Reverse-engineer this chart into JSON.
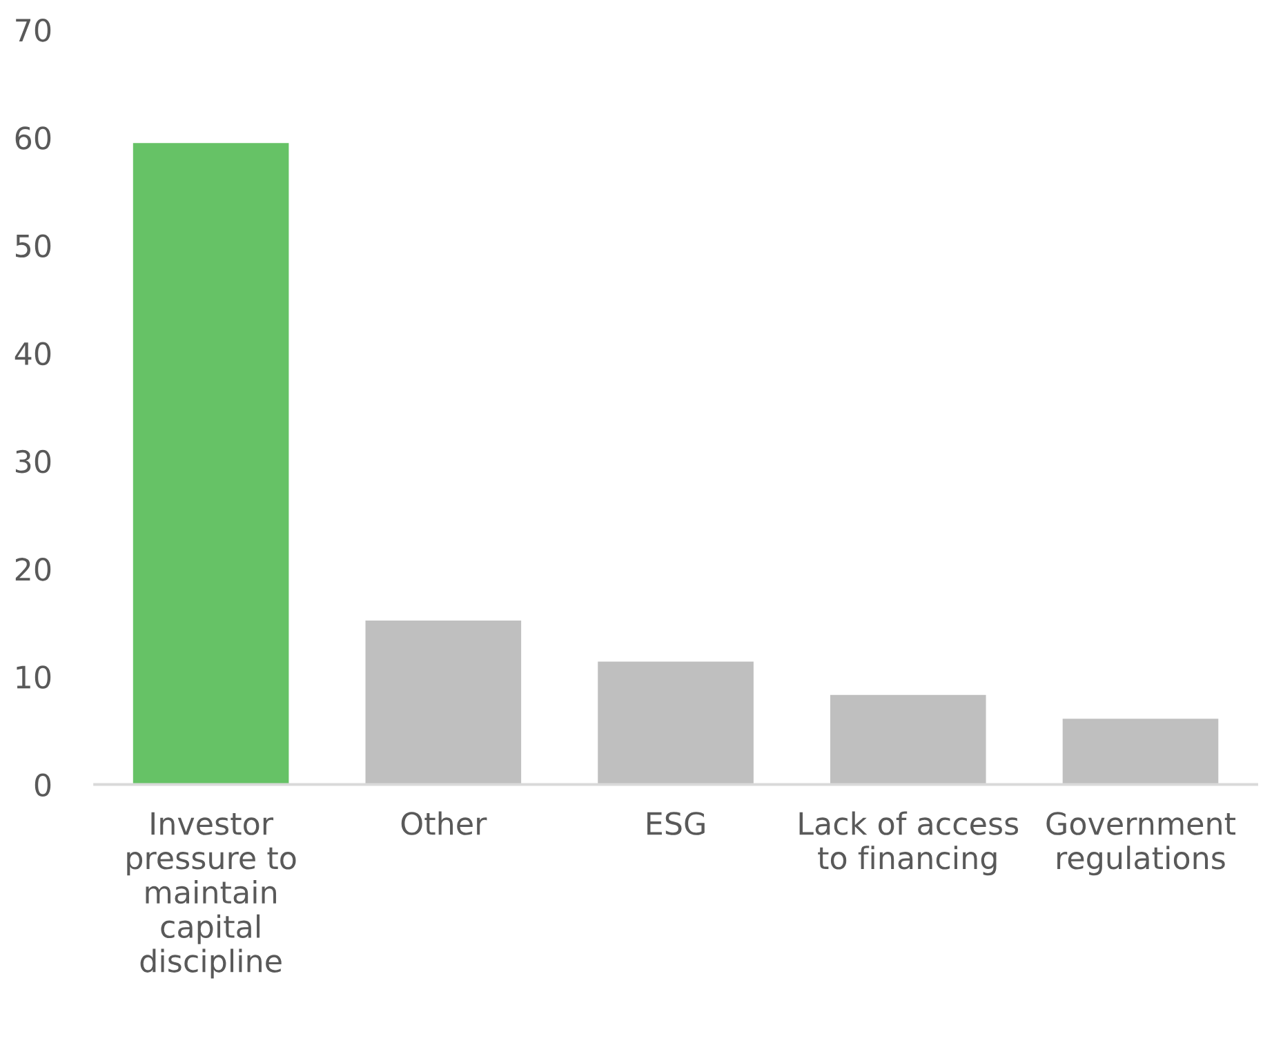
{
  "chart_data": {
    "type": "bar",
    "categories": [
      "Investor\npressure to\nmaintain\ncapital\ndiscipline",
      "Other",
      "ESG",
      "Lack of access\nto financing",
      "Government\nregulations"
    ],
    "values": [
      59.5,
      15.2,
      11.4,
      8.3,
      6.1
    ],
    "colors": [
      "#66c266",
      "#bfbfbf",
      "#bfbfbf",
      "#bfbfbf",
      "#bfbfbf"
    ],
    "ylim": [
      0,
      70
    ],
    "yticks": [
      0,
      10,
      20,
      30,
      40,
      50,
      60,
      70
    ],
    "grid": false
  }
}
